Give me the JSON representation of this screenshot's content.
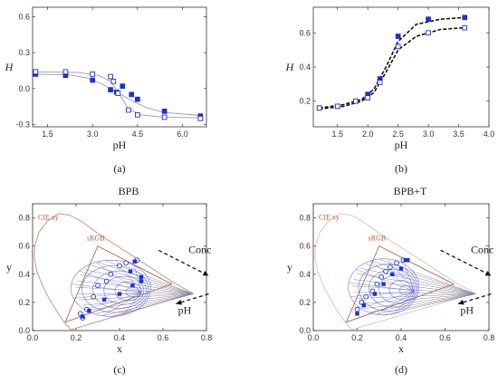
{
  "chart_data": [
    {
      "id": "a",
      "type": "line",
      "caption": "(a)",
      "xlabel": "pH",
      "ylabel": "H",
      "xlim": [
        1.0,
        6.8
      ],
      "ylim": [
        -0.32,
        0.68
      ],
      "xticks": [
        "1.5",
        "3.0",
        "4.5",
        "6.0"
      ],
      "xtick_values": [
        1.5,
        3.0,
        4.5,
        6.0
      ],
      "yticks": [
        "-0.3",
        "0.0",
        "0.3",
        "0.6"
      ],
      "ytick_values": [
        -0.3,
        0.0,
        0.3,
        0.6
      ],
      "series": [
        {
          "marker": "filled-square",
          "x": [
            1.1,
            2.1,
            3.0,
            3.6,
            3.8,
            4.0,
            4.3,
            4.5,
            5.4,
            6.6
          ],
          "y": [
            0.12,
            0.11,
            0.07,
            -0.01,
            -0.03,
            0.02,
            -0.05,
            -0.09,
            -0.19,
            -0.23
          ],
          "fit": [
            [
              1.1,
              0.12
            ],
            [
              2.2,
              0.115
            ],
            [
              2.8,
              0.09
            ],
            [
              3.3,
              0.04
            ],
            [
              3.8,
              -0.03
            ],
            [
              4.3,
              -0.1
            ],
            [
              4.8,
              -0.16
            ],
            [
              5.4,
              -0.2
            ],
            [
              6.6,
              -0.225
            ]
          ]
        },
        {
          "marker": "open-square",
          "x": [
            1.1,
            2.1,
            3.0,
            3.6,
            3.7,
            3.85,
            4.2,
            4.5,
            5.4,
            6.6
          ],
          "y": [
            0.14,
            0.14,
            0.12,
            0.1,
            0.06,
            -0.04,
            -0.18,
            -0.22,
            -0.24,
            -0.25
          ],
          "fit": [
            [
              1.1,
              0.14
            ],
            [
              2.5,
              0.135
            ],
            [
              3.2,
              0.11
            ],
            [
              3.6,
              0.06
            ],
            [
              3.9,
              -0.05
            ],
            [
              4.2,
              -0.17
            ],
            [
              4.6,
              -0.22
            ],
            [
              5.4,
              -0.24
            ],
            [
              6.6,
              -0.245
            ]
          ]
        }
      ]
    },
    {
      "id": "b",
      "type": "line",
      "caption": "(b)",
      "xlabel": "pH",
      "ylabel": "H",
      "xlim": [
        1.1,
        4.0
      ],
      "ylim": [
        0.05,
        0.75
      ],
      "xticks": [
        "1.5",
        "2.0",
        "2.5",
        "3.0",
        "3.5",
        "4.0"
      ],
      "xtick_values": [
        1.5,
        2.0,
        2.5,
        3.0,
        3.5,
        4.0
      ],
      "yticks": [
        "0.2",
        "0.4",
        "0.6"
      ],
      "ytick_values": [
        0.2,
        0.4,
        0.6
      ],
      "series": [
        {
          "marker": "filled-square",
          "x": [
            1.2,
            1.5,
            1.8,
            2.0,
            2.2,
            2.5,
            3.0,
            3.6
          ],
          "y": [
            0.16,
            0.17,
            0.2,
            0.24,
            0.33,
            0.58,
            0.68,
            0.69
          ],
          "fit": [
            [
              1.2,
              0.16
            ],
            [
              1.6,
              0.18
            ],
            [
              1.9,
              0.21
            ],
            [
              2.1,
              0.27
            ],
            [
              2.3,
              0.4
            ],
            [
              2.5,
              0.55
            ],
            [
              2.8,
              0.65
            ],
            [
              3.2,
              0.68
            ],
            [
              3.6,
              0.69
            ]
          ]
        },
        {
          "marker": "open-square",
          "x": [
            1.2,
            1.5,
            1.8,
            2.0,
            2.2,
            2.5,
            3.0,
            3.6
          ],
          "y": [
            0.16,
            0.17,
            0.2,
            0.22,
            0.31,
            0.52,
            0.6,
            0.63
          ],
          "fit": [
            [
              1.2,
              0.155
            ],
            [
              1.6,
              0.17
            ],
            [
              1.9,
              0.2
            ],
            [
              2.1,
              0.25
            ],
            [
              2.3,
              0.37
            ],
            [
              2.5,
              0.5
            ],
            [
              2.8,
              0.58
            ],
            [
              3.2,
              0.62
            ],
            [
              3.6,
              0.63
            ]
          ]
        }
      ]
    },
    {
      "id": "c",
      "type": "scatter",
      "caption": "(c)",
      "title": "BPB",
      "xlabel": "x",
      "ylabel": "y",
      "xlim": [
        0,
        0.8
      ],
      "ylim": [
        0,
        0.9
      ],
      "xticks": [
        "0.0",
        "0.2",
        "0.4",
        "0.6",
        "0.8"
      ],
      "xtick_values": [
        0.0,
        0.2,
        0.4,
        0.6,
        0.8
      ],
      "yticks": [
        "0.0",
        "0.2",
        "0.4",
        "0.6",
        "0.8"
      ],
      "ytick_values": [
        0.0,
        0.2,
        0.4,
        0.6,
        0.8
      ],
      "labels": {
        "cie": "CIE xy",
        "srgb": "sRGB",
        "conc": "Conc",
        "ph": "pH"
      },
      "filled_points": [
        [
          0.23,
          0.1
        ],
        [
          0.26,
          0.14
        ],
        [
          0.33,
          0.22
        ],
        [
          0.4,
          0.26
        ],
        [
          0.46,
          0.32
        ],
        [
          0.5,
          0.35
        ],
        [
          0.5,
          0.38
        ],
        [
          0.45,
          0.42
        ],
        [
          0.47,
          0.49
        ]
      ],
      "open_points": [
        [
          0.23,
          0.09
        ],
        [
          0.25,
          0.15
        ],
        [
          0.28,
          0.24
        ],
        [
          0.3,
          0.32
        ],
        [
          0.34,
          0.35
        ],
        [
          0.36,
          0.4
        ],
        [
          0.4,
          0.46
        ],
        [
          0.43,
          0.48
        ],
        [
          0.48,
          0.5
        ],
        [
          0.22,
          0.12
        ]
      ]
    },
    {
      "id": "d",
      "type": "scatter",
      "caption": "(d)",
      "title": "BPB+T",
      "xlabel": "x",
      "ylabel": "y",
      "xlim": [
        0,
        0.8
      ],
      "ylim": [
        0,
        0.9
      ],
      "xticks": [
        "0.0",
        "0.2",
        "0.4",
        "0.6",
        "0.8"
      ],
      "xtick_values": [
        0.0,
        0.2,
        0.4,
        0.6,
        0.8
      ],
      "yticks": [
        "0.0",
        "0.2",
        "0.4",
        "0.6",
        "0.8"
      ],
      "ytick_values": [
        0.0,
        0.2,
        0.4,
        0.6,
        0.8
      ],
      "labels": {
        "cie": "CIE xy",
        "srgb": "sRGB",
        "conc": "Conc",
        "ph": "pH"
      },
      "filled_points": [
        [
          0.2,
          0.12
        ],
        [
          0.23,
          0.18
        ],
        [
          0.28,
          0.26
        ],
        [
          0.32,
          0.33
        ],
        [
          0.36,
          0.4
        ],
        [
          0.4,
          0.44
        ],
        [
          0.42,
          0.5
        ],
        [
          0.43,
          0.5
        ]
      ],
      "open_points": [
        [
          0.2,
          0.15
        ],
        [
          0.22,
          0.2
        ],
        [
          0.24,
          0.24
        ],
        [
          0.27,
          0.28
        ],
        [
          0.29,
          0.33
        ],
        [
          0.31,
          0.38
        ],
        [
          0.33,
          0.42
        ],
        [
          0.35,
          0.45
        ],
        [
          0.38,
          0.48
        ],
        [
          0.41,
          0.5
        ]
      ]
    }
  ],
  "colors": {
    "marker": "#1f2fd6",
    "fit_a": "#9a9aa8",
    "fit_b": "#111111",
    "locus": "#c98a72",
    "srgb": "#a86a55",
    "mesh": "#4a55d8",
    "fan": "#8a8a9a"
  }
}
